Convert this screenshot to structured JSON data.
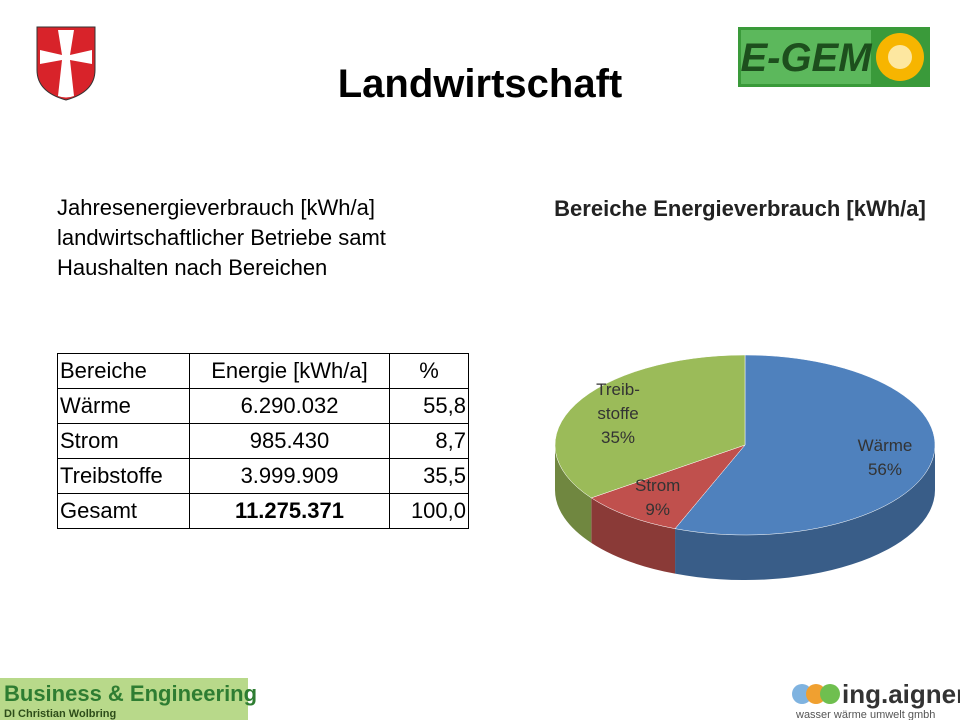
{
  "header": {
    "title": "Landwirtschaft"
  },
  "logos": {
    "top_right": "E-GEM",
    "bottom_left_name": "Business & Engineering",
    "bottom_left_person": "DI Christian Wolbring",
    "bottom_right_name": "ing.aigner",
    "bottom_right_tagline": "wasser wärme umwelt gmbh"
  },
  "intro": "Jahresenergieverbrauch [kWh/a] landwirtschaftlicher Betriebe samt Haushalten nach Bereichen",
  "table": {
    "header": [
      "Bereiche",
      "Energie [kWh/a]",
      "%"
    ],
    "rows": [
      [
        "Wärme",
        "6.290.032",
        "55,8"
      ],
      [
        "Strom",
        "985.430",
        "8,7"
      ],
      [
        "Treibstoffe",
        "3.999.909",
        "35,5"
      ],
      [
        "Gesamt",
        "11.275.371",
        "100,0"
      ]
    ]
  },
  "chart_data": {
    "type": "pie",
    "title": "Bereiche Energieverbrauch [kWh/a]",
    "categories": [
      "Wärme",
      "Strom",
      "Treib-\nstoffe"
    ],
    "values": [
      56,
      9,
      35
    ],
    "value_labels": [
      "56%",
      "9%",
      "35%"
    ],
    "colors": [
      "#4f81bd",
      "#c0504d",
      "#9bbb59"
    ]
  }
}
